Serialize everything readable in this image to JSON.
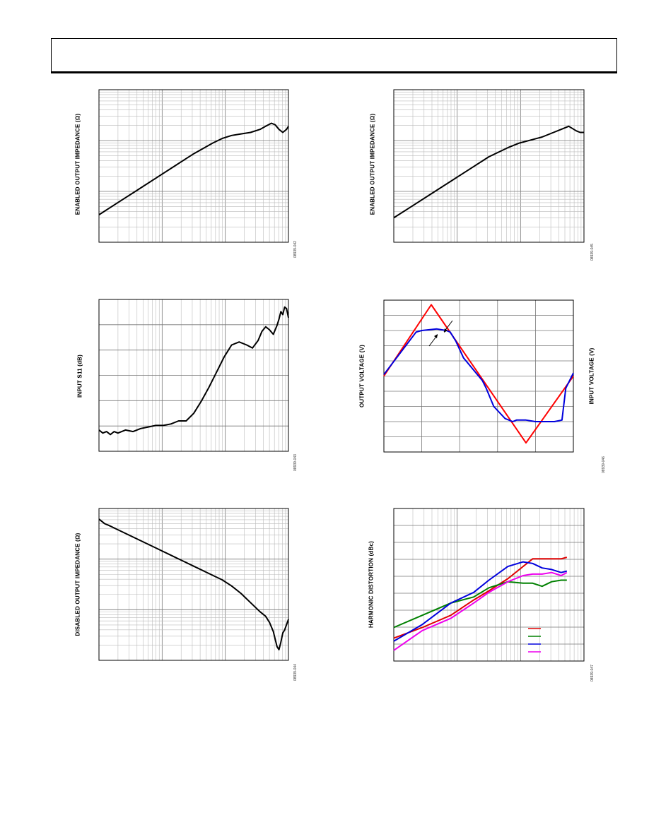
{
  "page": {
    "header_box": ""
  },
  "chart_data": [
    {
      "id": "fig-1",
      "type": "line",
      "grid": "log-log",
      "ylabel": "ENABLED OUTPUT IMPEDANCE (Ω)",
      "fig_id": "08939-042",
      "series": [
        {
          "color": "#000000",
          "x": [
            0.0,
            0.1,
            0.2,
            0.3,
            0.4,
            0.5,
            0.6,
            0.65,
            0.7,
            0.75,
            0.8,
            0.85,
            0.88,
            0.91,
            0.93,
            0.95,
            0.97,
            0.99,
            1.0
          ],
          "y": [
            0.18,
            0.26,
            0.34,
            0.42,
            0.5,
            0.58,
            0.65,
            0.68,
            0.7,
            0.71,
            0.72,
            0.74,
            0.76,
            0.78,
            0.77,
            0.74,
            0.72,
            0.74,
            0.76
          ]
        }
      ]
    },
    {
      "id": "fig-2",
      "type": "line",
      "grid": "log-log",
      "ylabel": "ENABLED OUTPUT IMPEDANCE (Ω)",
      "fig_id": "08939-045",
      "series": [
        {
          "color": "#000000",
          "x": [
            0.0,
            0.1,
            0.2,
            0.3,
            0.4,
            0.5,
            0.6,
            0.66,
            0.72,
            0.78,
            0.84,
            0.88,
            0.92,
            0.96,
            0.98,
            1.0
          ],
          "y": [
            0.16,
            0.24,
            0.32,
            0.4,
            0.48,
            0.56,
            0.62,
            0.65,
            0.67,
            0.69,
            0.72,
            0.74,
            0.76,
            0.73,
            0.72,
            0.72
          ]
        }
      ]
    },
    {
      "id": "fig-3",
      "type": "line",
      "grid": "semilog-x",
      "ylabel": "INPUT S11 (dB)",
      "fig_id": "08939-043",
      "series": [
        {
          "color": "#000000",
          "x": [
            0.0,
            0.02,
            0.04,
            0.06,
            0.08,
            0.1,
            0.14,
            0.18,
            0.22,
            0.26,
            0.3,
            0.34,
            0.38,
            0.42,
            0.46,
            0.5,
            0.54,
            0.58,
            0.62,
            0.66,
            0.7,
            0.74,
            0.78,
            0.81,
            0.84,
            0.86,
            0.88,
            0.9,
            0.92,
            0.94,
            0.95,
            0.96,
            0.97,
            0.98,
            0.99,
            1.0
          ],
          "y": [
            0.14,
            0.12,
            0.13,
            0.11,
            0.13,
            0.12,
            0.14,
            0.13,
            0.15,
            0.16,
            0.17,
            0.17,
            0.18,
            0.2,
            0.2,
            0.25,
            0.33,
            0.42,
            0.52,
            0.62,
            0.7,
            0.72,
            0.7,
            0.68,
            0.73,
            0.79,
            0.82,
            0.8,
            0.77,
            0.83,
            0.87,
            0.92,
            0.9,
            0.95,
            0.94,
            0.88
          ]
        }
      ]
    },
    {
      "id": "fig-4",
      "type": "line",
      "grid": "linear",
      "ylabel": "OUTPUT VOLTAGE (V)",
      "ylabel_right": "INPUT VOLTAGE (V)",
      "fig_id": "08939-046",
      "series": [
        {
          "color": "#ff0000",
          "x": [
            0.0,
            0.25,
            0.75,
            1.0
          ],
          "y": [
            0.5,
            0.97,
            0.06,
            0.5
          ]
        },
        {
          "color": "#0000dd",
          "x": [
            0.0,
            0.17,
            0.2,
            0.28,
            0.33,
            0.35,
            0.38,
            0.42,
            0.48,
            0.5,
            0.52,
            0.54,
            0.58,
            0.64,
            0.68,
            0.7,
            0.75,
            0.8,
            0.9,
            0.94,
            0.96,
            1.0
          ],
          "y": [
            0.51,
            0.79,
            0.8,
            0.81,
            0.8,
            0.79,
            0.73,
            0.62,
            0.53,
            0.5,
            0.47,
            0.42,
            0.3,
            0.22,
            0.2,
            0.21,
            0.21,
            0.2,
            0.2,
            0.21,
            0.42,
            0.52
          ]
        }
      ]
    },
    {
      "id": "fig-5",
      "type": "line",
      "grid": "log-log",
      "ylabel": "DISABLED OUTPUT IMPEDANCE (Ω)",
      "fig_id": "08939-044",
      "series": [
        {
          "color": "#000000",
          "x": [
            0.0,
            0.01,
            0.02,
            0.03,
            0.05,
            0.1,
            0.2,
            0.3,
            0.4,
            0.5,
            0.6,
            0.65,
            0.7,
            0.75,
            0.8,
            0.85,
            0.88,
            0.9,
            0.92,
            0.93,
            0.94,
            0.95,
            0.96,
            0.97,
            0.98,
            1.0
          ],
          "y": [
            0.93,
            0.92,
            0.91,
            0.9,
            0.89,
            0.86,
            0.8,
            0.74,
            0.68,
            0.62,
            0.56,
            0.53,
            0.49,
            0.44,
            0.38,
            0.32,
            0.29,
            0.25,
            0.19,
            0.14,
            0.09,
            0.07,
            0.12,
            0.18,
            0.2,
            0.27
          ]
        }
      ]
    },
    {
      "id": "fig-6",
      "type": "line",
      "grid": "semilog-x",
      "ylabel": "HARMONIC DISTORTION (dBc)",
      "fig_id": "08939-047",
      "legend_position": "bottom-right",
      "series": [
        {
          "color": "#e00000",
          "x": [
            0.0,
            0.15,
            0.3,
            0.42,
            0.5,
            0.6,
            0.68,
            0.73,
            0.78,
            0.83,
            0.88,
            0.91
          ],
          "y": [
            0.15,
            0.22,
            0.3,
            0.4,
            0.46,
            0.54,
            0.62,
            0.67,
            0.67,
            0.67,
            0.67,
            0.68
          ]
        },
        {
          "color": "#008000",
          "x": [
            0.0,
            0.15,
            0.3,
            0.42,
            0.5,
            0.6,
            0.68,
            0.73,
            0.78,
            0.83,
            0.88,
            0.91
          ],
          "y": [
            0.22,
            0.3,
            0.38,
            0.42,
            0.48,
            0.52,
            0.51,
            0.51,
            0.49,
            0.52,
            0.53,
            0.53
          ]
        },
        {
          "color": "#0000dd",
          "x": [
            0.0,
            0.15,
            0.3,
            0.42,
            0.5,
            0.6,
            0.68,
            0.73,
            0.78,
            0.83,
            0.88,
            0.91
          ],
          "y": [
            0.13,
            0.24,
            0.38,
            0.45,
            0.53,
            0.62,
            0.65,
            0.64,
            0.61,
            0.6,
            0.58,
            0.59
          ]
        },
        {
          "color": "#ee00ee",
          "x": [
            0.0,
            0.15,
            0.3,
            0.42,
            0.5,
            0.6,
            0.68,
            0.73,
            0.78,
            0.83,
            0.88,
            0.91
          ],
          "y": [
            0.07,
            0.2,
            0.28,
            0.38,
            0.45,
            0.52,
            0.56,
            0.57,
            0.57,
            0.58,
            0.56,
            0.58
          ]
        }
      ]
    }
  ]
}
